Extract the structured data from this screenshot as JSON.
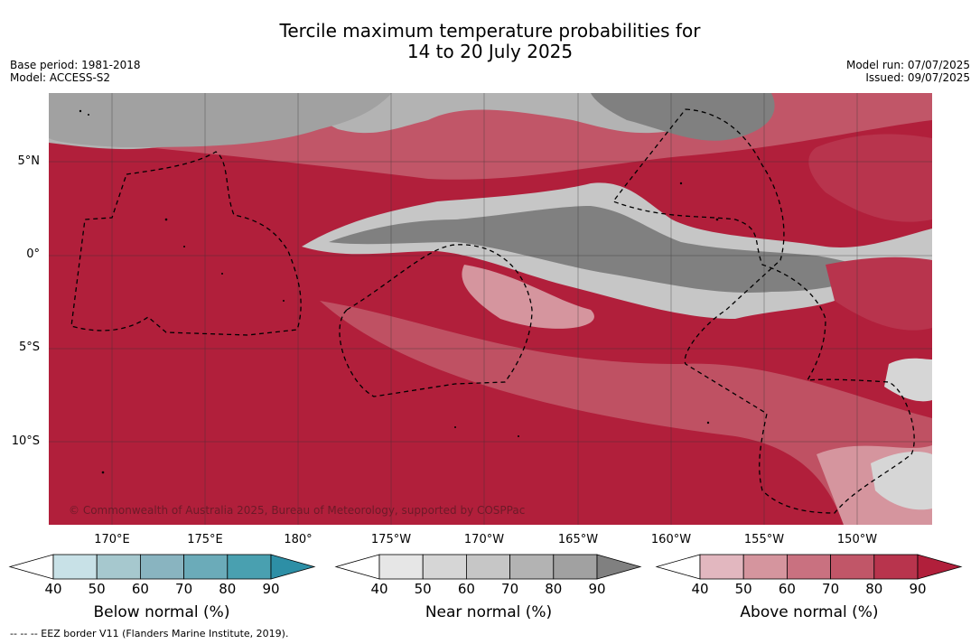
{
  "title_line1": "Tercile maximum temperature probabilities for",
  "title_line2": "14 to 20 July 2025",
  "base_period": "Base period: 1981-2018",
  "model": "Model: ACCESS-S2",
  "model_run": "Model run: 07/07/2025",
  "issued": "Issued: 09/07/2025",
  "lat_labels": [
    "5°N",
    "0°",
    "5°S",
    "10°S"
  ],
  "lon_labels": [
    "170°E",
    "175°E",
    "180°",
    "175°W",
    "170°W",
    "165°W",
    "160°W",
    "155°W",
    "150°W"
  ],
  "copyright": "© Commonwealth of Australia 2025, Bureau of Meteorology, supported by COSPPac",
  "colorbars": [
    {
      "label": "Below normal (%)",
      "ticks": [
        "40",
        "50",
        "60",
        "70",
        "80",
        "90"
      ],
      "colors": [
        "#c8e1e7",
        "#a6c8ce",
        "#89b4c0",
        "#6babb9",
        "#49a0b0",
        "#2d8fa6"
      ]
    },
    {
      "label": "Near normal (%)",
      "ticks": [
        "40",
        "50",
        "60",
        "70",
        "80",
        "90"
      ],
      "colors": [
        "#e6e6e6",
        "#d6d6d6",
        "#c6c6c6",
        "#b3b3b3",
        "#a1a1a1",
        "#808080"
      ]
    },
    {
      "label": "Above normal (%)",
      "ticks": [
        "40",
        "50",
        "60",
        "70",
        "80",
        "90"
      ],
      "colors": [
        "#e2b7bf",
        "#d5959e",
        "#c97180",
        "#c15668",
        "#b8344d",
        "#b11f3b"
      ]
    }
  ],
  "footnote": "--  --  -- EEZ border V11 (Flanders Marine Institute, 2019)."
}
